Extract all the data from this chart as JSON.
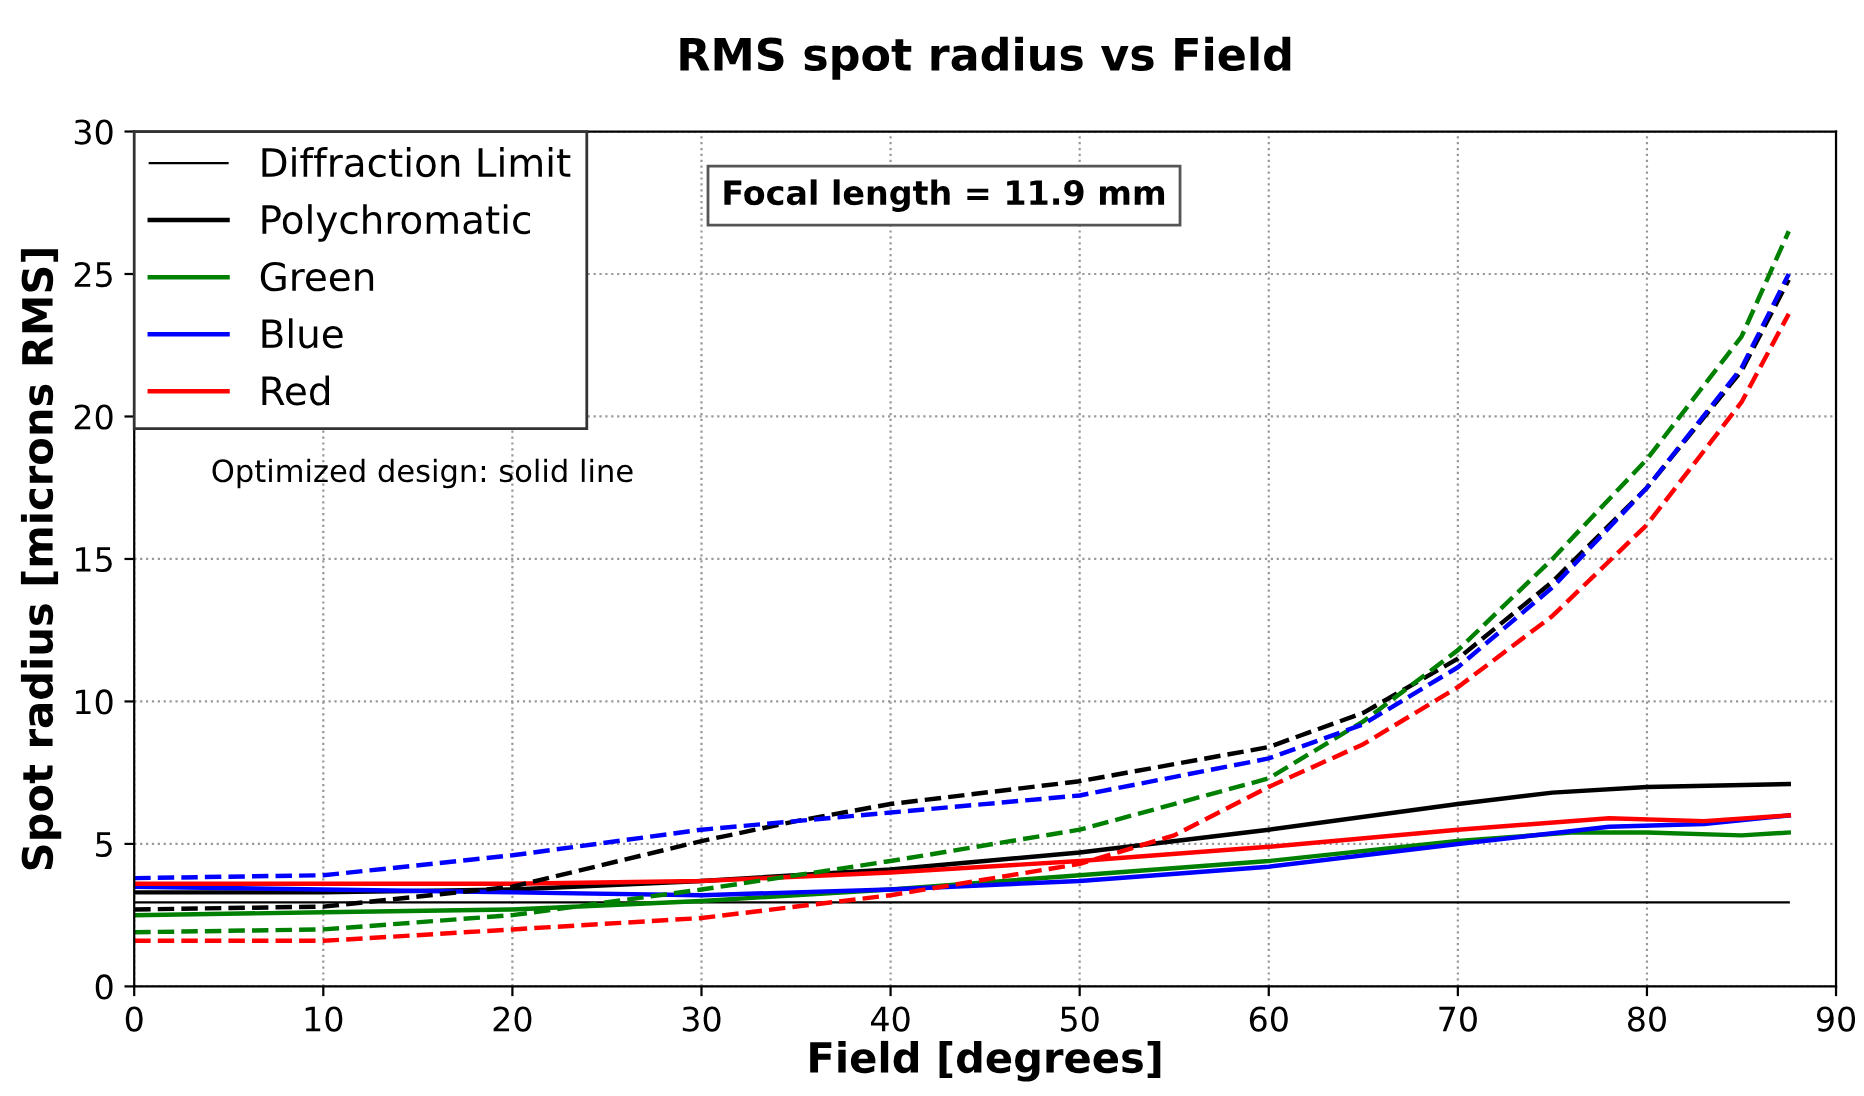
{
  "chart_data": {
    "type": "line",
    "title": "RMS spot radius vs Field",
    "xlabel": "Field [degrees]",
    "ylabel": "Spot radius [microns RMS]",
    "xlim": [
      0,
      90
    ],
    "ylim": [
      0,
      30
    ],
    "xticks": [
      0,
      10,
      20,
      30,
      40,
      50,
      60,
      70,
      80,
      90
    ],
    "yticks": [
      0,
      5,
      10,
      15,
      20,
      25,
      30
    ],
    "grid": true,
    "legend": "top left",
    "annotations": [
      "Focal length = 11.9 mm",
      "Optimized design: solid line"
    ],
    "series": [
      {
        "name": "Diffraction Limit",
        "color": "#000000",
        "line_style": "solid",
        "x": [
          0,
          87.5
        ],
        "values": [
          2.95,
          2.95
        ]
      },
      {
        "name": "Polychromatic",
        "color": "#000000",
        "line_style": "solid",
        "x": [
          0,
          10,
          20,
          30,
          40,
          50,
          60,
          70,
          75,
          80,
          87.5
        ],
        "values": [
          3.3,
          3.3,
          3.4,
          3.7,
          4.1,
          4.7,
          5.5,
          6.4,
          6.8,
          7.0,
          7.1
        ]
      },
      {
        "name": "Green",
        "color": "#008000",
        "line_style": "solid",
        "x": [
          0,
          10,
          20,
          30,
          40,
          50,
          60,
          70,
          76,
          80,
          85,
          87.5
        ],
        "values": [
          2.5,
          2.6,
          2.7,
          3.0,
          3.4,
          3.9,
          4.4,
          5.1,
          5.4,
          5.4,
          5.3,
          5.4
        ]
      },
      {
        "name": "Blue",
        "color": "#0000ff",
        "line_style": "solid",
        "x": [
          0,
          10,
          20,
          30,
          40,
          50,
          60,
          70,
          78,
          83,
          87.5
        ],
        "values": [
          3.5,
          3.4,
          3.3,
          3.2,
          3.4,
          3.7,
          4.2,
          5.0,
          5.6,
          5.7,
          6.0
        ]
      },
      {
        "name": "Red",
        "color": "#ff0000",
        "line_style": "solid",
        "x": [
          0,
          10,
          20,
          30,
          40,
          50,
          60,
          70,
          78,
          83,
          87.5
        ],
        "values": [
          3.6,
          3.6,
          3.6,
          3.7,
          4.0,
          4.4,
          4.9,
          5.5,
          5.9,
          5.8,
          6.0
        ]
      },
      {
        "color": "#000000",
        "line_style": "dashed",
        "x": [
          0,
          10,
          20,
          30,
          35,
          40,
          50,
          60,
          65,
          70,
          75,
          80,
          85,
          87.5
        ],
        "values": [
          2.7,
          2.8,
          3.5,
          5.1,
          5.8,
          6.4,
          7.2,
          8.4,
          9.6,
          11.5,
          14.2,
          17.5,
          21.6,
          24.8
        ]
      },
      {
        "color": "#008000",
        "line_style": "dashed",
        "x": [
          0,
          10,
          20,
          30,
          40,
          50,
          60,
          65,
          70,
          75,
          80,
          85,
          87.5
        ],
        "values": [
          1.9,
          2.0,
          2.5,
          3.4,
          4.4,
          5.5,
          7.3,
          9.3,
          11.8,
          15.0,
          18.5,
          22.8,
          26.5
        ]
      },
      {
        "color": "#0000ff",
        "line_style": "dashed",
        "x": [
          0,
          10,
          20,
          30,
          40,
          50,
          60,
          65,
          70,
          75,
          80,
          85,
          87.5
        ],
        "values": [
          3.8,
          3.9,
          4.6,
          5.5,
          6.1,
          6.7,
          8.0,
          9.2,
          11.2,
          14.0,
          17.5,
          21.7,
          25.0
        ]
      },
      {
        "color": "#ff0000",
        "line_style": "dashed",
        "x": [
          0,
          10,
          20,
          30,
          40,
          50,
          55,
          60,
          65,
          70,
          75,
          80,
          85,
          87.5
        ],
        "values": [
          1.6,
          1.6,
          2.0,
          2.4,
          3.2,
          4.3,
          5.3,
          7.0,
          8.5,
          10.5,
          13.0,
          16.2,
          20.5,
          23.6
        ]
      }
    ]
  }
}
